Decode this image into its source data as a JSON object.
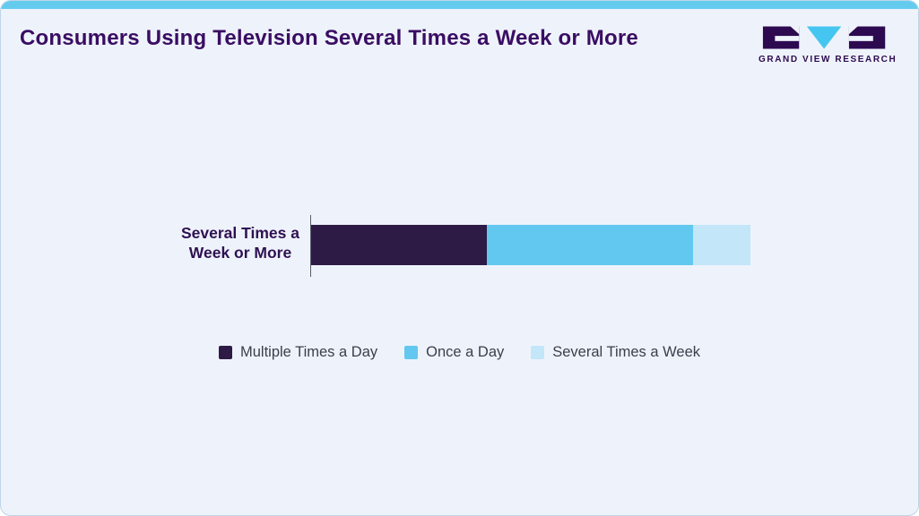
{
  "header": {
    "title": "Consumers Using Television Several Times a Week or More"
  },
  "logo": {
    "brand": "GRAND VIEW RESEARCH"
  },
  "colors": {
    "top_stripe": "#65cbee",
    "card_background": "#eef3fb",
    "title_text": "#3a0d63",
    "category_label_text": "#2f1152",
    "legend_text": "#3a3f4a"
  },
  "chart_data": {
    "type": "bar",
    "orientation": "horizontal",
    "stacked": true,
    "title": "Consumers Using Television Several Times a Week or More",
    "categories": [
      "Several Times a Week or More"
    ],
    "series": [
      {
        "name": "Multiple Times a Day",
        "values": [
          40
        ],
        "color": "#2d1b46"
      },
      {
        "name": "Once a Day",
        "values": [
          47
        ],
        "color": "#63c8ef"
      },
      {
        "name": "Several Times a Week",
        "values": [
          13
        ],
        "color": "#c3e6f8"
      }
    ],
    "xlim": [
      0,
      100
    ],
    "xlabel": "",
    "ylabel": "",
    "grid": false,
    "legend_position": "bottom",
    "note": "values estimated from segment proportions; no numeric data labels shown"
  }
}
